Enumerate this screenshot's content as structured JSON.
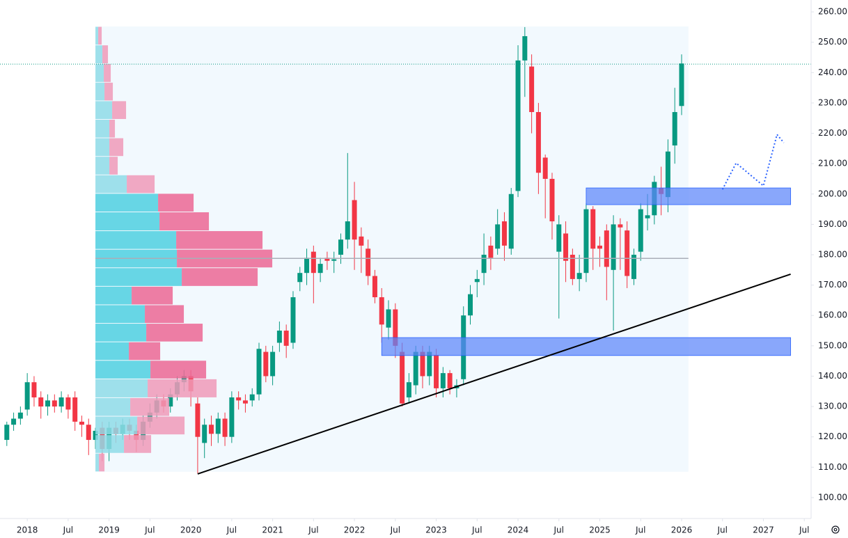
{
  "chart_data": {
    "type": "candlestick",
    "x": [
      "2017-10",
      "2017-11",
      "2017-12",
      "2018-01",
      "2018-02",
      "2018-03",
      "2018-04",
      "2018-05",
      "2018-06",
      "2018-07",
      "2018-08",
      "2018-09",
      "2018-10",
      "2018-11",
      "2018-12",
      "2019-01",
      "2019-02",
      "2019-03",
      "2019-04",
      "2019-05",
      "2019-06",
      "2019-07",
      "2019-08",
      "2019-09",
      "2019-10",
      "2019-11",
      "2019-12",
      "2020-01",
      "2020-02",
      "2020-03",
      "2020-04",
      "2020-05",
      "2020-06",
      "2020-07",
      "2020-08",
      "2020-09",
      "2020-10",
      "2020-11",
      "2020-12",
      "2021-01",
      "2021-02",
      "2021-03",
      "2021-04",
      "2021-05",
      "2021-06",
      "2021-07",
      "2021-08",
      "2021-09",
      "2021-10",
      "2021-11",
      "2021-12",
      "2022-01",
      "2022-02",
      "2022-03",
      "2022-04",
      "2022-05",
      "2022-06",
      "2022-07",
      "2022-08",
      "2022-09",
      "2022-10",
      "2022-11",
      "2022-12",
      "2023-01",
      "2023-02",
      "2023-03",
      "2023-04",
      "2023-05",
      "2023-06",
      "2023-07",
      "2023-08",
      "2023-09",
      "2023-10",
      "2023-11",
      "2023-12",
      "2024-01",
      "2024-02",
      "2024-03",
      "2024-04",
      "2024-05",
      "2024-06",
      "2024-07",
      "2024-08",
      "2024-09",
      "2024-10",
      "2024-11",
      "2024-12",
      "2025-01",
      "2025-02",
      "2025-03",
      "2025-04",
      "2025-05",
      "2025-06",
      "2025-07",
      "2025-08",
      "2025-09",
      "2025-10",
      "2025-11",
      "2025-12",
      "2026-01"
    ],
    "open": [
      119,
      124,
      126,
      129,
      138,
      133,
      130,
      132,
      130,
      133,
      133,
      125,
      124,
      119,
      123,
      116,
      123,
      121,
      124,
      122,
      119,
      125,
      128,
      132,
      130,
      134,
      138,
      140,
      131,
      118,
      124,
      121,
      126,
      120,
      133,
      132,
      132,
      134,
      148,
      140,
      151,
      155,
      151,
      171,
      174,
      181,
      174,
      179,
      178,
      180,
      185,
      198,
      186,
      182,
      173,
      166,
      156,
      162,
      148,
      133,
      137,
      148,
      140,
      147,
      136,
      141,
      136,
      139,
      160,
      171,
      174,
      183,
      182,
      191,
      182,
      201,
      244,
      242,
      227,
      212,
      205,
      181,
      187,
      180,
      172,
      174,
      195,
      183,
      188,
      175,
      190,
      188,
      172,
      181,
      192,
      193,
      202,
      199,
      216,
      229
    ],
    "close": [
      124,
      126,
      128,
      138,
      133,
      130,
      132,
      130,
      133,
      129,
      125,
      124,
      119,
      122,
      116,
      123,
      121,
      124,
      122,
      119,
      125,
      128,
      132,
      130,
      134,
      138,
      140,
      135,
      120,
      124,
      121,
      126,
      120,
      133,
      132,
      131,
      134,
      149,
      140,
      148,
      155,
      150,
      166,
      174,
      179,
      174,
      177,
      178,
      178.5,
      185,
      191,
      185,
      183,
      173,
      166,
      157,
      162,
      150,
      131,
      138,
      148,
      140,
      148,
      136,
      141,
      136,
      137,
      160,
      167,
      172,
      180,
      179,
      190,
      183,
      200,
      244,
      252,
      227,
      207,
      205,
      191,
      190,
      178,
      172,
      174,
      195,
      182,
      182,
      176,
      190,
      189,
      173,
      180,
      195,
      193,
      204,
      200,
      214,
      227,
      243
    ],
    "high": [
      125,
      128,
      130,
      141,
      140,
      135,
      134,
      134,
      135,
      134,
      135,
      127,
      126,
      123,
      125,
      125,
      125,
      126,
      126,
      124,
      127,
      131,
      134,
      134,
      136,
      140,
      142,
      142,
      133,
      126,
      127,
      128,
      128,
      135,
      135,
      134,
      136,
      151,
      150,
      150,
      158,
      157,
      168,
      176,
      182,
      183,
      179,
      181,
      181,
      187,
      213.5,
      204,
      189,
      185,
      175,
      169,
      165,
      164,
      151,
      141,
      150,
      150,
      150,
      149,
      143,
      142,
      139,
      163,
      170,
      175,
      187,
      186,
      195,
      194,
      202,
      249,
      255,
      246,
      230,
      213,
      207,
      193,
      191,
      182,
      180,
      197,
      196,
      186,
      190,
      193,
      192,
      191,
      182,
      197,
      200,
      206,
      209,
      218,
      235,
      246
    ],
    "low": [
      117,
      122,
      124,
      127,
      130,
      126,
      127,
      128,
      128,
      126,
      122,
      120,
      114,
      116,
      112,
      112,
      118,
      119,
      119,
      115,
      117,
      123,
      126,
      128,
      128,
      132,
      135,
      130,
      108,
      113,
      117,
      118,
      117,
      118,
      129,
      128,
      130,
      132,
      138,
      137,
      148,
      146,
      149,
      168,
      170,
      164,
      171,
      175,
      174,
      177,
      182,
      175,
      174,
      170,
      164,
      151,
      152,
      146,
      130,
      131,
      134,
      136,
      137,
      133,
      133,
      134,
      133,
      137,
      157,
      166,
      170,
      175,
      180,
      178,
      180,
      199,
      232,
      220,
      200,
      192,
      185,
      159,
      171,
      170,
      168,
      171,
      175,
      176,
      165,
      155,
      175,
      169,
      170,
      178,
      188,
      190,
      193,
      194,
      210,
      226
    ],
    "up_color": "#089981",
    "down_color": "#f23645",
    "xlim": [
      "2017-09",
      "2027-08"
    ],
    "xticks": [
      {
        "value": "2018-01",
        "label": "2018"
      },
      {
        "value": "2018-07",
        "label": "Jul"
      },
      {
        "value": "2019-01",
        "label": "2019"
      },
      {
        "value": "2019-07",
        "label": "Jul"
      },
      {
        "value": "2020-01",
        "label": "2020"
      },
      {
        "value": "2020-07",
        "label": "Jul"
      },
      {
        "value": "2021-01",
        "label": "2021"
      },
      {
        "value": "2021-07",
        "label": "Jul"
      },
      {
        "value": "2022-01",
        "label": "2022"
      },
      {
        "value": "2022-07",
        "label": "Jul"
      },
      {
        "value": "2023-01",
        "label": "2023"
      },
      {
        "value": "2023-07",
        "label": "Jul"
      },
      {
        "value": "2024-01",
        "label": "2024"
      },
      {
        "value": "2024-07",
        "label": "Jul"
      },
      {
        "value": "2025-01",
        "label": "2025"
      },
      {
        "value": "2025-07",
        "label": "Jul"
      },
      {
        "value": "2026-01",
        "label": "2026"
      },
      {
        "value": "2026-07",
        "label": "Jul"
      },
      {
        "value": "2027-01",
        "label": "2027"
      },
      {
        "value": "2027-07",
        "label": "Jul"
      }
    ],
    "ylim": [
      97,
      263
    ],
    "yticks": [
      {
        "value": 100,
        "label": "100.00"
      },
      {
        "value": 110,
        "label": "110.00"
      },
      {
        "value": 120,
        "label": "120.00"
      },
      {
        "value": 130,
        "label": "130.00"
      },
      {
        "value": 140,
        "label": "140.00"
      },
      {
        "value": 150,
        "label": "150.00"
      },
      {
        "value": 160,
        "label": "160.00"
      },
      {
        "value": 170,
        "label": "170.00"
      },
      {
        "value": 180,
        "label": "180.00"
      },
      {
        "value": 190,
        "label": "190.00"
      },
      {
        "value": 200,
        "label": "200.00"
      },
      {
        "value": 210,
        "label": "210.00"
      },
      {
        "value": 220,
        "label": "220.00"
      },
      {
        "value": 230,
        "label": "230.00"
      },
      {
        "value": 240,
        "label": "240.00"
      },
      {
        "value": 250,
        "label": "250.00"
      },
      {
        "value": 260,
        "label": "260.00"
      }
    ],
    "last_price": 242.8,
    "volume_profile": {
      "start": "2018-11",
      "end": "2026-02",
      "bins": [
        108.5,
        114.6,
        120.7,
        126.8,
        132.9,
        139.1,
        145.2,
        151.3,
        157.4,
        163.5,
        169.6,
        175.7,
        181.8,
        187.9,
        194.1,
        200.2,
        206.3,
        212.4,
        218.5,
        224.6,
        230.7,
        236.8,
        242.9,
        249.1,
        255.2
      ],
      "up": [
        5,
        41,
        60,
        50,
        75,
        79,
        48,
        73,
        71,
        52,
        124,
        117,
        116,
        92,
        90,
        45,
        20,
        20,
        20,
        24,
        13,
        12,
        10,
        4
      ],
      "down": [
        8,
        39,
        68,
        56,
        99,
        80,
        45,
        81,
        56,
        59,
        109,
        137,
        124,
        71,
        51,
        40,
        12,
        20,
        8,
        20,
        12,
        10,
        8,
        5
      ],
      "value_area": [
        139.1,
        200.2
      ],
      "poc": 178.8
    },
    "zones": [
      {
        "x": [
          "2024-11",
          "2027-05"
        ],
        "y": [
          196.5,
          202
        ]
      },
      {
        "x": [
          "2022-05",
          "2027-05"
        ],
        "y": [
          146.8,
          152.7
        ]
      }
    ],
    "trendline": {
      "x": [
        "2020-02",
        "2027-05"
      ],
      "y": [
        107.8,
        173.6
      ]
    },
    "projection": {
      "x": [
        "2026-07",
        "2026-09",
        "2027-01",
        "2027-03",
        "2027-04"
      ],
      "y": [
        201.5,
        210.2,
        202.7,
        219.6,
        216.9
      ]
    }
  }
}
